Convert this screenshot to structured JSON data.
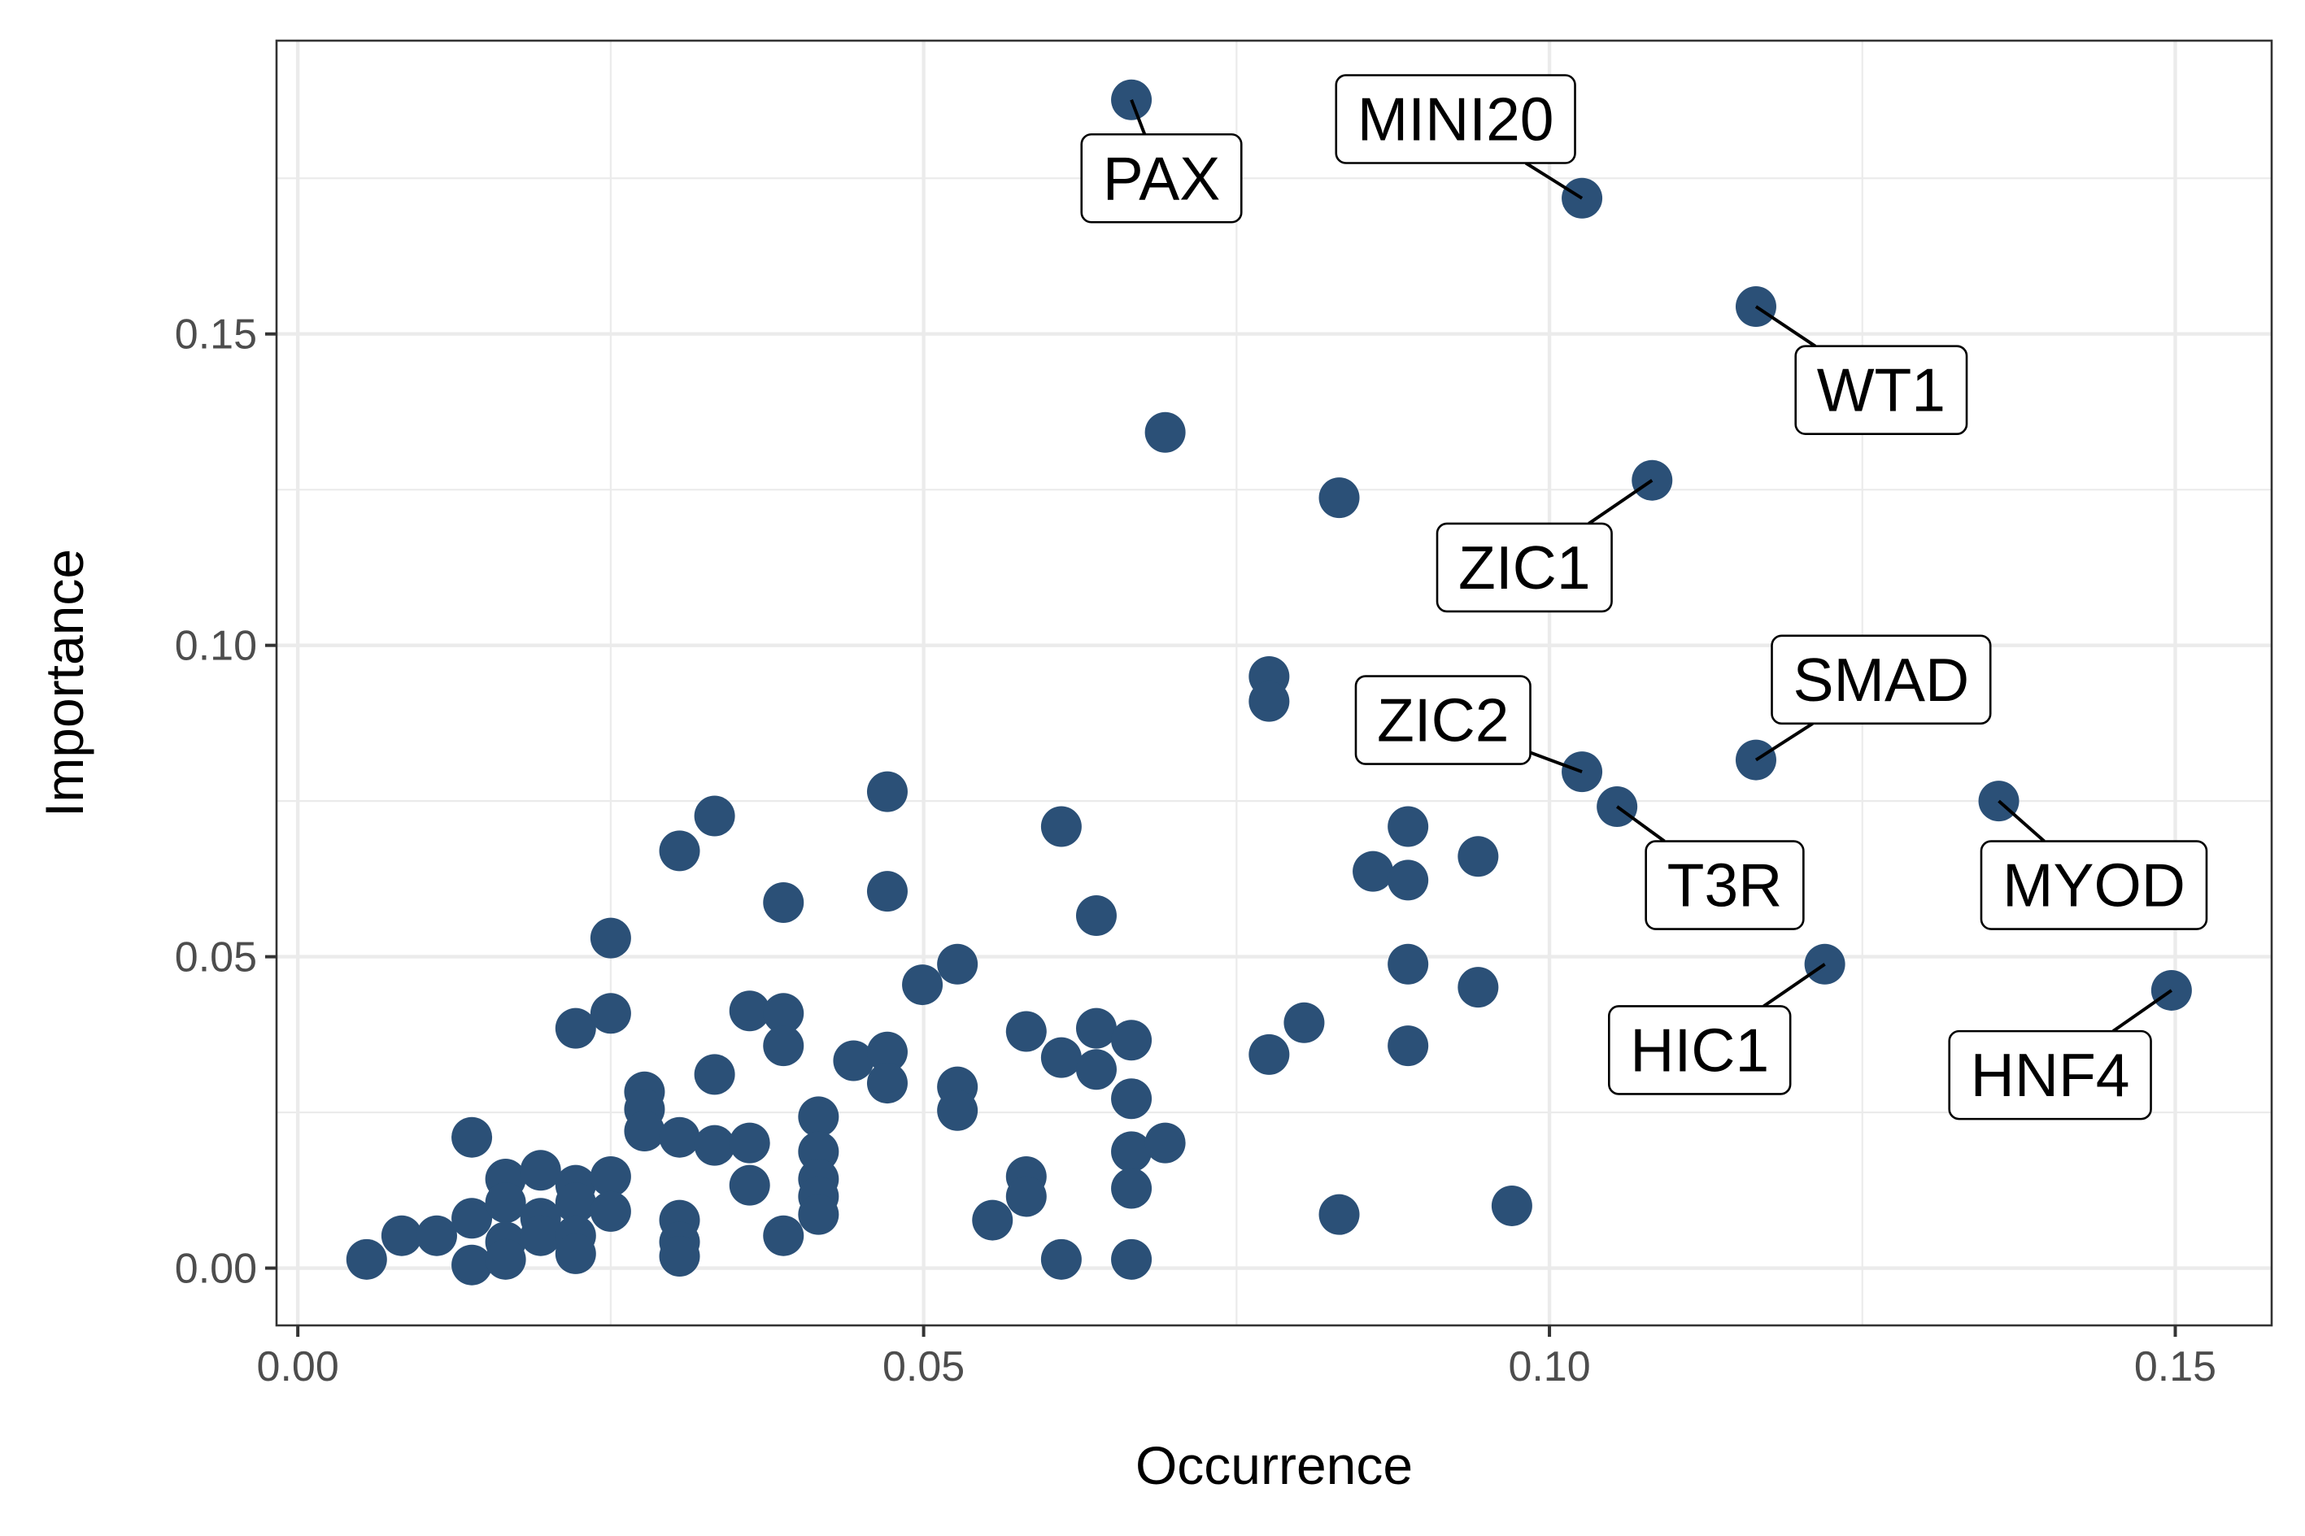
{
  "chart_data": {
    "type": "scatter",
    "title": "",
    "xlabel": "Occurrence",
    "ylabel": "Importance",
    "xlim": [
      -0.0017,
      0.1577
    ],
    "ylim": [
      -0.0092,
      0.1971
    ],
    "xticks": [
      0.0,
      0.05,
      0.1,
      0.15
    ],
    "xtick_labels": [
      "0.00",
      "0.05",
      "0.10",
      "0.15"
    ],
    "yticks": [
      0.0,
      0.05,
      0.1,
      0.15
    ],
    "ytick_labels": [
      "0.00",
      "0.05",
      "0.10",
      "0.15"
    ],
    "grid": true,
    "colors": {
      "point": "#2B5077",
      "grid": "#EBEBEB",
      "panel_border": "#333333",
      "label_text": "#000000"
    },
    "points": [
      {
        "x": 0.0055,
        "y": 0.0014
      },
      {
        "x": 0.0083,
        "y": 0.0052
      },
      {
        "x": 0.0111,
        "y": 0.0052
      },
      {
        "x": 0.0139,
        "y": 0.021
      },
      {
        "x": 0.0139,
        "y": 0.008
      },
      {
        "x": 0.0139,
        "y": 0.0005
      },
      {
        "x": 0.0166,
        "y": 0.0143
      },
      {
        "x": 0.0166,
        "y": 0.0105
      },
      {
        "x": 0.0166,
        "y": 0.0042
      },
      {
        "x": 0.0166,
        "y": 0.0014
      },
      {
        "x": 0.0194,
        "y": 0.0157
      },
      {
        "x": 0.0194,
        "y": 0.008
      },
      {
        "x": 0.0194,
        "y": 0.0052
      },
      {
        "x": 0.0222,
        "y": 0.0385
      },
      {
        "x": 0.0222,
        "y": 0.0133
      },
      {
        "x": 0.0222,
        "y": 0.0105
      },
      {
        "x": 0.0222,
        "y": 0.0052
      },
      {
        "x": 0.0222,
        "y": 0.0023
      },
      {
        "x": 0.025,
        "y": 0.053
      },
      {
        "x": 0.025,
        "y": 0.0409
      },
      {
        "x": 0.025,
        "y": 0.0147
      },
      {
        "x": 0.025,
        "y": 0.0091
      },
      {
        "x": 0.0277,
        "y": 0.0283
      },
      {
        "x": 0.0277,
        "y": 0.0255
      },
      {
        "x": 0.0277,
        "y": 0.022
      },
      {
        "x": 0.0305,
        "y": 0.067
      },
      {
        "x": 0.0305,
        "y": 0.021
      },
      {
        "x": 0.0305,
        "y": 0.0077
      },
      {
        "x": 0.0305,
        "y": 0.0042
      },
      {
        "x": 0.0305,
        "y": 0.0019
      },
      {
        "x": 0.0333,
        "y": 0.0726
      },
      {
        "x": 0.0333,
        "y": 0.0311
      },
      {
        "x": 0.0333,
        "y": 0.0197
      },
      {
        "x": 0.0361,
        "y": 0.0413
      },
      {
        "x": 0.0361,
        "y": 0.0201
      },
      {
        "x": 0.0361,
        "y": 0.0133
      },
      {
        "x": 0.0388,
        "y": 0.0587
      },
      {
        "x": 0.0388,
        "y": 0.0409
      },
      {
        "x": 0.0388,
        "y": 0.0357
      },
      {
        "x": 0.0388,
        "y": 0.0052
      },
      {
        "x": 0.0416,
        "y": 0.0243
      },
      {
        "x": 0.0416,
        "y": 0.0187
      },
      {
        "x": 0.0416,
        "y": 0.0143
      },
      {
        "x": 0.0416,
        "y": 0.0115
      },
      {
        "x": 0.0416,
        "y": 0.0086
      },
      {
        "x": 0.0444,
        "y": 0.0333
      },
      {
        "x": 0.0471,
        "y": 0.0765
      },
      {
        "x": 0.0471,
        "y": 0.0605
      },
      {
        "x": 0.0471,
        "y": 0.0347
      },
      {
        "x": 0.0471,
        "y": 0.0297
      },
      {
        "x": 0.0499,
        "y": 0.0455
      },
      {
        "x": 0.0527,
        "y": 0.0488
      },
      {
        "x": 0.0527,
        "y": 0.0291
      },
      {
        "x": 0.0527,
        "y": 0.0253
      },
      {
        "x": 0.0555,
        "y": 0.0077
      },
      {
        "x": 0.0582,
        "y": 0.038
      },
      {
        "x": 0.0582,
        "y": 0.0147
      },
      {
        "x": 0.0582,
        "y": 0.0115
      },
      {
        "x": 0.061,
        "y": 0.0709
      },
      {
        "x": 0.061,
        "y": 0.0338
      },
      {
        "x": 0.061,
        "y": 0.0014
      },
      {
        "x": 0.0638,
        "y": 0.0566
      },
      {
        "x": 0.0638,
        "y": 0.0385
      },
      {
        "x": 0.0638,
        "y": 0.0319
      },
      {
        "x": 0.0666,
        "y": 0.1876
      },
      {
        "x": 0.0666,
        "y": 0.0366
      },
      {
        "x": 0.0666,
        "y": 0.0272
      },
      {
        "x": 0.0666,
        "y": 0.0187
      },
      {
        "x": 0.0666,
        "y": 0.0128
      },
      {
        "x": 0.0666,
        "y": 0.0014
      },
      {
        "x": 0.0693,
        "y": 0.1342
      },
      {
        "x": 0.0693,
        "y": 0.0201
      },
      {
        "x": 0.0776,
        "y": 0.095
      },
      {
        "x": 0.0776,
        "y": 0.091
      },
      {
        "x": 0.0776,
        "y": 0.0343
      },
      {
        "x": 0.0804,
        "y": 0.0394
      },
      {
        "x": 0.0832,
        "y": 0.1237
      },
      {
        "x": 0.0832,
        "y": 0.0086
      },
      {
        "x": 0.0859,
        "y": 0.0637
      },
      {
        "x": 0.0887,
        "y": 0.0709
      },
      {
        "x": 0.0887,
        "y": 0.0623
      },
      {
        "x": 0.0887,
        "y": 0.0488
      },
      {
        "x": 0.0887,
        "y": 0.0357
      },
      {
        "x": 0.0943,
        "y": 0.0661
      },
      {
        "x": 0.0943,
        "y": 0.0451
      },
      {
        "x": 0.097,
        "y": 0.01
      },
      {
        "x": 0.1026,
        "y": 0.1718
      },
      {
        "x": 0.1026,
        "y": 0.0797
      },
      {
        "x": 0.1054,
        "y": 0.0741
      },
      {
        "x": 0.1082,
        "y": 0.1265
      },
      {
        "x": 0.1165,
        "y": 0.1544
      },
      {
        "x": 0.1165,
        "y": 0.0816
      },
      {
        "x": 0.122,
        "y": 0.0488
      },
      {
        "x": 0.1359,
        "y": 0.075
      },
      {
        "x": 0.1497,
        "y": 0.0446
      }
    ],
    "annotations": [
      {
        "label": "PAX",
        "x": 0.0666,
        "y": 0.1876,
        "lx": 0.069,
        "ly": 0.175
      },
      {
        "label": "MINI20",
        "x": 0.1026,
        "y": 0.1718,
        "lx": 0.0925,
        "ly": 0.1845
      },
      {
        "label": "WT1",
        "x": 0.1165,
        "y": 0.1544,
        "lx": 0.1265,
        "ly": 0.141
      },
      {
        "label": "ZIC1",
        "x": 0.1082,
        "y": 0.1265,
        "lx": 0.098,
        "ly": 0.1125
      },
      {
        "label": "SMAD",
        "x": 0.1165,
        "y": 0.0816,
        "lx": 0.1265,
        "ly": 0.0945
      },
      {
        "label": "ZIC2",
        "x": 0.1026,
        "y": 0.0797,
        "lx": 0.0915,
        "ly": 0.088
      },
      {
        "label": "T3R",
        "x": 0.1054,
        "y": 0.0741,
        "lx": 0.114,
        "ly": 0.0615
      },
      {
        "label": "MYOD",
        "x": 0.1359,
        "y": 0.075,
        "lx": 0.1435,
        "ly": 0.0615
      },
      {
        "label": "HIC1",
        "x": 0.122,
        "y": 0.0488,
        "lx": 0.112,
        "ly": 0.035
      },
      {
        "label": "HNF4",
        "x": 0.1497,
        "y": 0.0446,
        "lx": 0.14,
        "ly": 0.031
      }
    ]
  }
}
